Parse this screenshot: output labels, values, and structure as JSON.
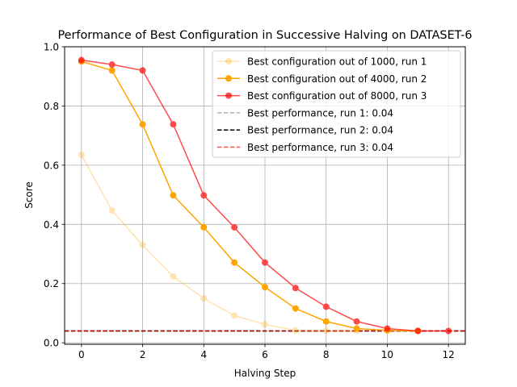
{
  "chart_data": {
    "type": "line",
    "title": "Performance of Best Configuration in Successive Halving on DATASET-6",
    "xlabel": "Halving Step",
    "ylabel": "Score",
    "xlim": [
      -0.55,
      12.55
    ],
    "ylim": [
      -0.005,
      1.0
    ],
    "xticks": [
      0,
      2,
      4,
      6,
      8,
      10,
      12
    ],
    "yticks": [
      0.0,
      0.2,
      0.4,
      0.6,
      0.8,
      1.0
    ],
    "ytick_labels": [
      "0.0",
      "0.2",
      "0.4",
      "0.6",
      "0.8",
      "1.0"
    ],
    "grid": true,
    "legend_position": "top-right",
    "series": [
      {
        "name": "Best configuration out of 1000, run 1",
        "color": "#ffa500",
        "opacity": 0.3,
        "marker": "circle",
        "x": [
          0,
          1,
          2,
          3,
          4,
          5,
          6,
          7,
          8,
          9
        ],
        "y": [
          0.635,
          0.447,
          0.33,
          0.224,
          0.15,
          0.092,
          0.062,
          0.042,
          0.04,
          0.04
        ]
      },
      {
        "name": "Best configuration out of 4000, run 2",
        "color": "#ffa500",
        "opacity": 1.0,
        "marker": "circle",
        "x": [
          0,
          1,
          2,
          3,
          4,
          5,
          6,
          7,
          8,
          9,
          10,
          11
        ],
        "y": [
          0.95,
          0.92,
          0.738,
          0.498,
          0.39,
          0.271,
          0.188,
          0.116,
          0.072,
          0.048,
          0.042,
          0.04
        ]
      },
      {
        "name": "Best configuration out of 8000, run 3",
        "color": "#ff0000",
        "opacity": 0.7,
        "marker": "circle",
        "x": [
          0,
          1,
          2,
          3,
          4,
          5,
          6,
          7,
          8,
          9,
          10,
          11,
          12
        ],
        "y": [
          0.955,
          0.94,
          0.92,
          0.738,
          0.498,
          0.39,
          0.271,
          0.185,
          0.122,
          0.072,
          0.048,
          0.04,
          0.04
        ]
      }
    ],
    "reference_lines": [
      {
        "name": "Best performance, run 1: 0.04",
        "y": 0.04,
        "color": "#808080",
        "opacity": 0.6,
        "style": "dashed"
      },
      {
        "name": "Best performance, run 2: 0.04",
        "y": 0.04,
        "color": "#000000",
        "opacity": 1.0,
        "style": "dashed"
      },
      {
        "name": "Best performance, run 3: 0.04",
        "y": 0.04,
        "color": "#ff0000",
        "opacity": 0.7,
        "style": "dashed"
      }
    ]
  }
}
